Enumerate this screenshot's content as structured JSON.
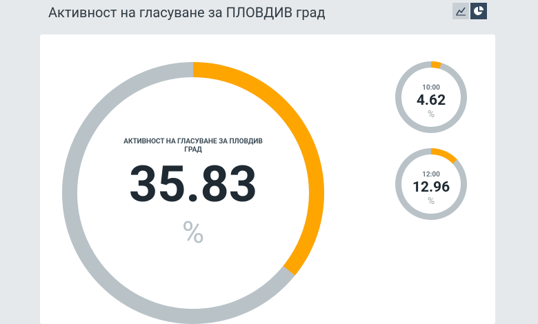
{
  "header": {
    "title": "Активност на гласуване за ПЛОВДИВ град"
  },
  "chart_data": [
    {
      "type": "gauge",
      "title": "АКТИВНОСТ НА ГЛАСУВАНЕ ЗА ПЛОВДИВ ГРАД",
      "value": 35.83,
      "unit": "%",
      "lim": [
        0,
        100
      ],
      "color": "#ffa500",
      "track_color": "#b8c2c7"
    },
    {
      "type": "gauge",
      "title": "10:00",
      "value": 4.62,
      "unit": "%",
      "lim": [
        0,
        100
      ],
      "color": "#ffa500",
      "track_color": "#b8c2c7"
    },
    {
      "type": "gauge",
      "title": "12:00",
      "value": 12.96,
      "unit": "%",
      "lim": [
        0,
        100
      ],
      "color": "#ffa500",
      "track_color": "#b8c2c7"
    }
  ]
}
